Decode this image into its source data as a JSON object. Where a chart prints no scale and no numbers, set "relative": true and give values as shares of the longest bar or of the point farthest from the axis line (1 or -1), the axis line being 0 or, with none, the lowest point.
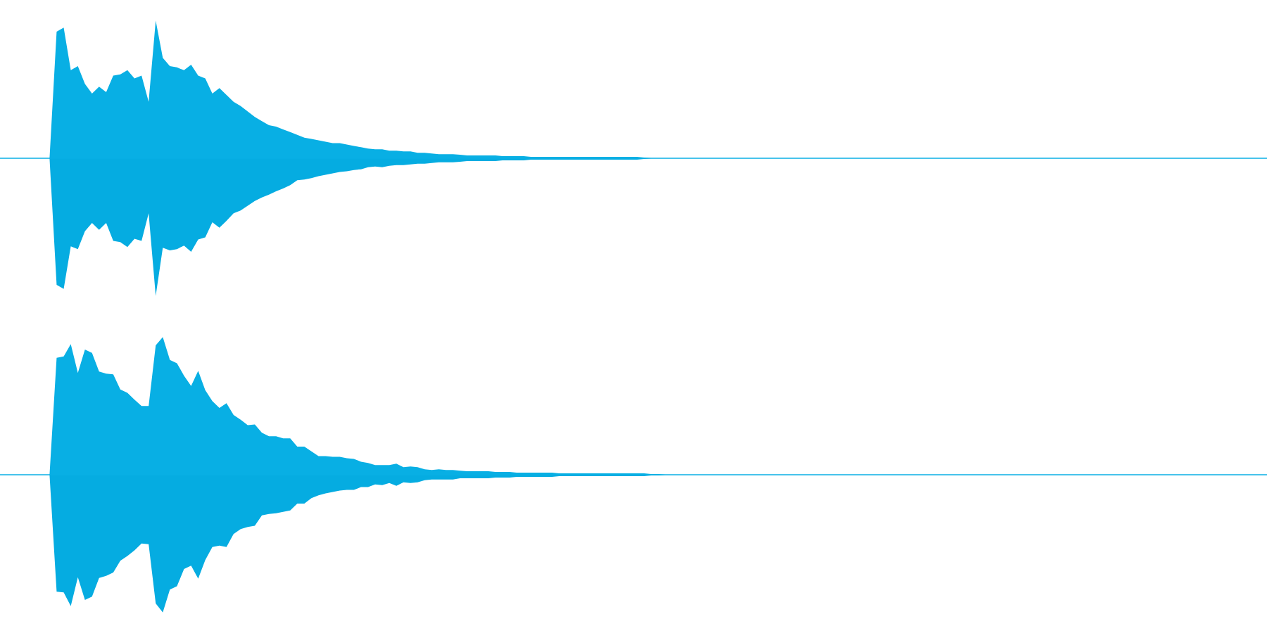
{
  "chart_data": [
    {
      "type": "area",
      "relative": true,
      "categories": [
        null,
        null,
        null,
        null,
        null,
        null,
        null,
        null,
        null,
        null,
        null,
        null,
        null,
        null,
        null,
        null,
        null,
        null,
        null,
        null,
        null,
        null,
        null,
        null,
        null,
        null,
        null,
        null,
        null,
        null,
        null,
        null,
        null,
        null,
        null,
        null,
        null,
        null,
        null,
        null,
        null,
        null,
        null,
        null,
        null,
        null,
        null,
        null,
        null,
        null,
        null,
        null,
        null,
        null,
        null,
        null,
        null,
        null,
        null,
        null,
        null,
        null,
        null,
        null,
        null,
        null,
        null,
        null,
        null,
        null,
        null,
        null,
        null,
        null,
        null,
        null,
        null,
        null,
        null,
        null,
        null,
        null,
        null,
        null,
        null,
        null,
        null,
        null,
        null,
        null,
        null,
        null,
        null,
        null,
        null,
        null,
        null,
        null,
        null,
        null,
        null,
        null,
        null,
        null,
        null,
        null,
        null,
        null,
        null,
        null,
        null,
        null,
        null,
        null,
        null,
        null,
        null,
        null,
        null,
        null,
        null,
        null,
        null,
        null,
        null,
        null,
        null,
        null,
        null,
        null,
        null,
        null,
        null,
        null,
        null,
        null,
        null,
        null,
        null,
        null,
        null,
        null,
        null,
        null,
        null,
        null,
        null,
        null,
        null,
        null,
        null,
        null,
        null,
        null,
        null,
        null,
        null,
        null,
        null,
        null,
        null,
        null,
        null,
        null,
        null,
        null,
        null,
        null,
        null,
        null,
        null,
        null,
        null,
        null,
        null,
        null,
        null,
        null,
        null,
        null
      ],
      "series": [
        {
          "color": "#08afe4",
          "values": [
            0,
            0,
            0,
            0,
            0,
            0,
            0,
            0,
            0.92,
            0.95,
            0.64,
            0.67,
            0.54,
            0.47,
            0.52,
            0.48,
            0.6,
            0.61,
            0.64,
            0.58,
            0.6,
            0.41,
            1,
            0.73,
            0.67,
            0.66,
            0.64,
            0.68,
            0.6,
            0.58,
            0.47,
            0.51,
            0.46,
            0.41,
            0.38,
            0.34,
            0.3,
            0.27,
            0.24,
            0.23,
            0.21,
            0.19,
            0.17,
            0.15,
            0.14,
            0.13,
            0.12,
            0.11,
            0.11,
            0.1,
            0.09,
            0.08,
            0.07,
            0.065,
            0.065,
            0.055,
            0.055,
            0.05,
            0.05,
            0.04,
            0.04,
            0.035,
            0.03,
            0.03,
            0.03,
            0.025,
            0.02,
            0.02,
            0.02,
            0.02,
            0.02,
            0.015,
            0.015,
            0.015,
            0.015,
            0.01,
            0.01,
            0.01,
            0.01,
            0.01,
            0.01,
            0.01,
            0.01,
            0.01,
            0.01,
            0.01,
            0.01,
            0.01,
            0.01,
            0.01,
            0.01,
            0.005,
            0,
            0,
            0,
            0,
            0,
            0,
            0,
            0,
            0,
            0,
            0,
            0,
            0,
            0,
            0,
            0,
            0,
            0,
            0,
            0,
            0,
            0,
            0,
            0,
            0,
            0,
            0,
            0,
            0,
            0,
            0,
            0,
            0,
            0,
            0,
            0,
            0,
            0,
            0,
            0,
            0,
            0,
            0,
            0,
            0,
            0,
            0,
            0,
            0,
            0,
            0,
            0,
            0,
            0,
            0,
            0,
            0,
            0,
            0,
            0,
            0,
            0,
            0,
            0,
            0,
            0,
            0,
            0,
            0,
            0,
            0,
            0,
            0,
            0,
            0,
            0,
            0,
            0,
            0,
            0,
            0,
            0,
            0,
            0,
            0,
            0,
            0,
            0
          ]
        },
        {
          "color": "#05ace1",
          "values": [
            0,
            0,
            0,
            0,
            0,
            0,
            0,
            0,
            -0.92,
            -0.95,
            -0.64,
            -0.66,
            -0.53,
            -0.47,
            -0.52,
            -0.47,
            -0.6,
            -0.61,
            -0.645,
            -0.585,
            -0.6,
            -0.4,
            -1,
            -0.65,
            -0.67,
            -0.66,
            -0.635,
            -0.68,
            -0.59,
            -0.575,
            -0.465,
            -0.505,
            -0.455,
            -0.4,
            -0.38,
            -0.345,
            -0.31,
            -0.285,
            -0.265,
            -0.24,
            -0.22,
            -0.195,
            -0.16,
            -0.155,
            -0.145,
            -0.13,
            -0.12,
            -0.11,
            -0.1,
            -0.095,
            -0.085,
            -0.08,
            -0.065,
            -0.06,
            -0.065,
            -0.055,
            -0.05,
            -0.05,
            -0.045,
            -0.04,
            -0.04,
            -0.035,
            -0.03,
            -0.03,
            -0.03,
            -0.025,
            -0.02,
            -0.02,
            -0.02,
            -0.02,
            -0.02,
            -0.015,
            -0.015,
            -0.015,
            -0.015,
            -0.01,
            -0.01,
            -0.01,
            -0.01,
            -0.01,
            -0.01,
            -0.01,
            -0.01,
            -0.01,
            -0.01,
            -0.01,
            -0.01,
            -0.01,
            -0.01,
            -0.01,
            -0.01,
            -0.005,
            0,
            0,
            0,
            0,
            0,
            0,
            0,
            0,
            0,
            0,
            0,
            0,
            0,
            0,
            0,
            0,
            0,
            0,
            0,
            0,
            0,
            0,
            0,
            0,
            0,
            0,
            0,
            0,
            0,
            0,
            0,
            0,
            0,
            0,
            0,
            0,
            0,
            0,
            0,
            0,
            0,
            0,
            0,
            0,
            0,
            0,
            0,
            0,
            0,
            0,
            0,
            0,
            0,
            0,
            0,
            0,
            0,
            0,
            0,
            0,
            0,
            0,
            0,
            0,
            0,
            0,
            0,
            0,
            0,
            0,
            0,
            0,
            0,
            0,
            0,
            0,
            0,
            0,
            0,
            0,
            0,
            0,
            0,
            0,
            0,
            0,
            0,
            0
          ]
        }
      ]
    },
    {
      "type": "area",
      "relative": true,
      "categories": [
        null,
        null,
        null,
        null,
        null,
        null,
        null,
        null,
        null,
        null,
        null,
        null,
        null,
        null,
        null,
        null,
        null,
        null,
        null,
        null,
        null,
        null,
        null,
        null,
        null,
        null,
        null,
        null,
        null,
        null,
        null,
        null,
        null,
        null,
        null,
        null,
        null,
        null,
        null,
        null,
        null,
        null,
        null,
        null,
        null,
        null,
        null,
        null,
        null,
        null,
        null,
        null,
        null,
        null,
        null,
        null,
        null,
        null,
        null,
        null,
        null,
        null,
        null,
        null,
        null,
        null,
        null,
        null,
        null,
        null,
        null,
        null,
        null,
        null,
        null,
        null,
        null,
        null,
        null,
        null,
        null,
        null,
        null,
        null,
        null,
        null,
        null,
        null,
        null,
        null,
        null,
        null,
        null,
        null,
        null,
        null,
        null,
        null,
        null,
        null,
        null,
        null,
        null,
        null,
        null,
        null,
        null,
        null,
        null,
        null,
        null,
        null,
        null,
        null,
        null,
        null,
        null,
        null,
        null,
        null,
        null,
        null,
        null,
        null,
        null,
        null,
        null,
        null,
        null,
        null,
        null,
        null,
        null,
        null,
        null,
        null,
        null,
        null,
        null,
        null,
        null,
        null,
        null,
        null,
        null,
        null,
        null,
        null,
        null,
        null,
        null,
        null,
        null,
        null,
        null,
        null,
        null,
        null,
        null,
        null,
        null,
        null,
        null,
        null,
        null,
        null,
        null,
        null,
        null,
        null,
        null,
        null,
        null,
        null,
        null,
        null,
        null,
        null,
        null,
        null
      ],
      "series": [
        {
          "color": "#08afe4",
          "values": [
            0,
            0,
            0,
            0,
            0,
            0,
            0,
            0,
            0.85,
            0.86,
            0.95,
            0.74,
            0.91,
            0.885,
            0.75,
            0.735,
            0.73,
            0.62,
            0.595,
            0.545,
            0.5,
            0.5,
            0.94,
            1,
            0.835,
            0.81,
            0.72,
            0.645,
            0.755,
            0.615,
            0.535,
            0.485,
            0.52,
            0.435,
            0.4,
            0.36,
            0.365,
            0.305,
            0.28,
            0.28,
            0.265,
            0.265,
            0.205,
            0.205,
            0.17,
            0.135,
            0.135,
            0.13,
            0.13,
            0.12,
            0.115,
            0.095,
            0.085,
            0.07,
            0.07,
            0.07,
            0.08,
            0.055,
            0.06,
            0.055,
            0.04,
            0.035,
            0.04,
            0.035,
            0.035,
            0.03,
            0.025,
            0.025,
            0.025,
            0.025,
            0.02,
            0.02,
            0.02,
            0.015,
            0.015,
            0.015,
            0.015,
            0.015,
            0.015,
            0.01,
            0.01,
            0.01,
            0.01,
            0.01,
            0.01,
            0.01,
            0.01,
            0.01,
            0.01,
            0.01,
            0.01,
            0.01,
            0.005,
            0.005,
            0,
            0,
            0,
            0,
            0,
            0,
            0,
            0,
            0,
            0,
            0,
            0,
            0,
            0,
            0,
            0,
            0,
            0,
            0,
            0,
            0,
            0,
            0,
            0,
            0,
            0,
            0,
            0,
            0,
            0,
            0,
            0,
            0,
            0,
            0,
            0,
            0,
            0,
            0,
            0,
            0,
            0,
            0,
            0,
            0,
            0,
            0,
            0,
            0,
            0,
            0,
            0,
            0,
            0,
            0,
            0,
            0,
            0,
            0,
            0,
            0,
            0,
            0,
            0,
            0,
            0,
            0,
            0,
            0,
            0,
            0,
            0,
            0,
            0,
            0,
            0,
            0,
            0,
            0,
            0,
            0,
            0,
            0,
            0,
            0,
            0
          ]
        },
        {
          "color": "#05ace1",
          "values": [
            0,
            0,
            0,
            0,
            0,
            0,
            0,
            0,
            -0.85,
            -0.855,
            -0.955,
            -0.745,
            -0.91,
            -0.885,
            -0.75,
            -0.735,
            -0.71,
            -0.625,
            -0.59,
            -0.55,
            -0.5,
            -0.505,
            -0.935,
            -1,
            -0.835,
            -0.81,
            -0.685,
            -0.66,
            -0.755,
            -0.62,
            -0.525,
            -0.515,
            -0.525,
            -0.43,
            -0.395,
            -0.38,
            -0.37,
            -0.295,
            -0.285,
            -0.28,
            -0.27,
            -0.26,
            -0.21,
            -0.21,
            -0.17,
            -0.15,
            -0.135,
            -0.125,
            -0.115,
            -0.11,
            -0.11,
            -0.09,
            -0.09,
            -0.07,
            -0.075,
            -0.06,
            -0.08,
            -0.055,
            -0.06,
            -0.055,
            -0.04,
            -0.035,
            -0.035,
            -0.035,
            -0.035,
            -0.025,
            -0.025,
            -0.025,
            -0.025,
            -0.025,
            -0.02,
            -0.02,
            -0.02,
            -0.015,
            -0.015,
            -0.015,
            -0.015,
            -0.015,
            -0.015,
            -0.01,
            -0.01,
            -0.01,
            -0.01,
            -0.01,
            -0.01,
            -0.01,
            -0.01,
            -0.01,
            -0.01,
            -0.01,
            -0.01,
            -0.01,
            -0.005,
            -0.005,
            0,
            0,
            0,
            0,
            0,
            0,
            0,
            0,
            0,
            0,
            0,
            0,
            0,
            0,
            0,
            0,
            0,
            0,
            0,
            0,
            0,
            0,
            0,
            0,
            0,
            0,
            0,
            0,
            0,
            0,
            0,
            0,
            0,
            0,
            0,
            0,
            0,
            0,
            0,
            0,
            0,
            0,
            0,
            0,
            0,
            0,
            0,
            0,
            0,
            0,
            0,
            0,
            0,
            0,
            0,
            0,
            0,
            0,
            0,
            0,
            0,
            0,
            0,
            0,
            0,
            0,
            0,
            0,
            0,
            0,
            0,
            0,
            0,
            0,
            0,
            0,
            0,
            0,
            0,
            0,
            0,
            0,
            0,
            0,
            0,
            0
          ]
        }
      ]
    }
  ]
}
